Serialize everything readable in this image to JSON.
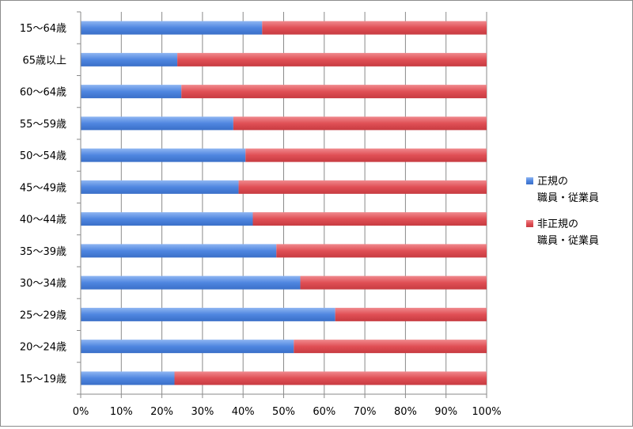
{
  "chart_data": {
    "type": "bar",
    "orientation": "horizontal",
    "stacked": "percent",
    "categories": [
      "15〜64歳",
      "65歳以上",
      "60〜64歳",
      "55〜59歳",
      "50〜54歳",
      "45〜49歳",
      "40〜44歳",
      "35〜39歳",
      "30〜34歳",
      "25〜29歳",
      "20〜24歳",
      "15〜19歳"
    ],
    "series": [
      {
        "name": "正規の\n職員・従業員",
        "color": "#4f86e0",
        "values": [
          44.7,
          23.8,
          24.8,
          37.6,
          40.6,
          38.9,
          42.4,
          48.2,
          54.1,
          62.7,
          52.5,
          23.1
        ]
      },
      {
        "name": "非正規の\n職員・従業員",
        "color": "#e04f55",
        "values": [
          55.3,
          76.2,
          75.2,
          62.4,
          59.4,
          61.1,
          57.6,
          51.8,
          45.9,
          37.3,
          47.5,
          76.9
        ]
      }
    ],
    "xlim": [
      0,
      100
    ],
    "x_ticks": [
      "0%",
      "10%",
      "20%",
      "30%",
      "40%",
      "50%",
      "60%",
      "70%",
      "80%",
      "90%",
      "100%"
    ],
    "grid": "vertical",
    "legend": "right",
    "title": "",
    "xlabel": "",
    "ylabel": ""
  }
}
